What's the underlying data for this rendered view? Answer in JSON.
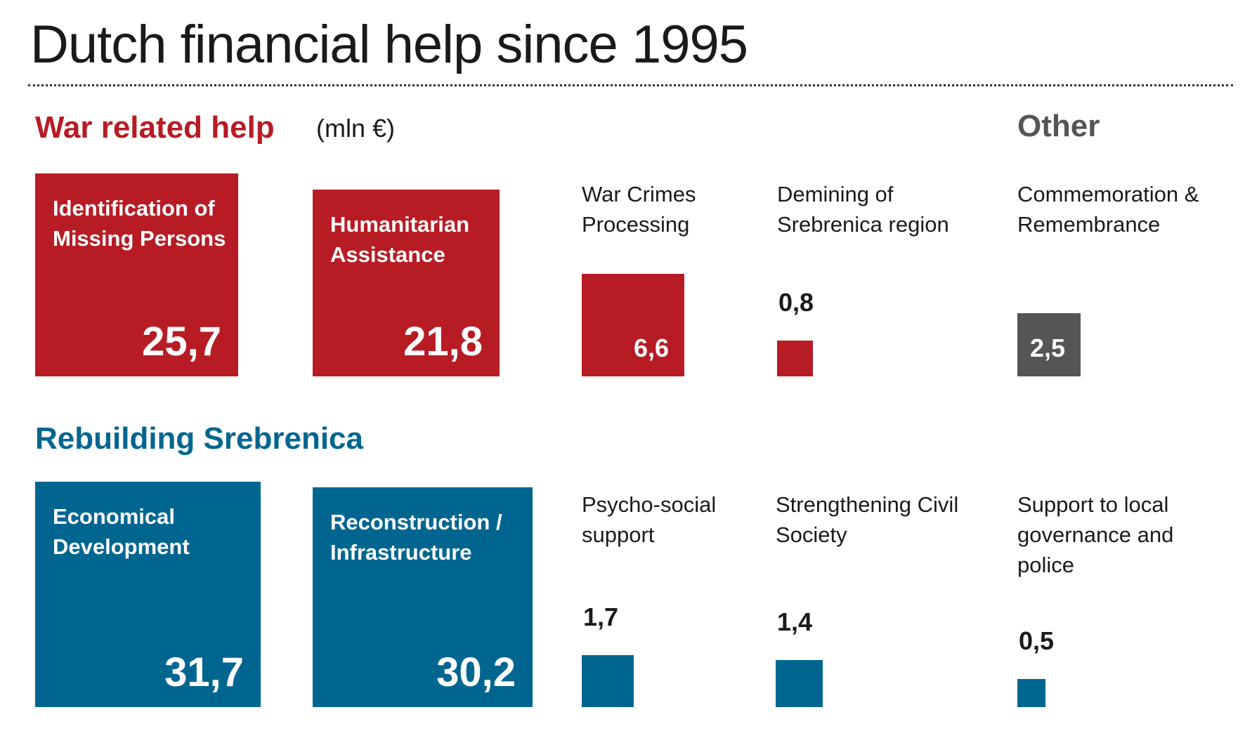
{
  "title": "Dutch financial help since 1995",
  "chart_data": {
    "type": "treemap",
    "unit": "(mln €)",
    "colors": {
      "war": "#b71c25",
      "rebuild": "#006690",
      "other": "#555555"
    },
    "groups": [
      {
        "name": "War related help",
        "color": "#b71c25",
        "items": [
          {
            "label": "Identification of Missing Persons",
            "value": 25.7,
            "display": "25,7"
          },
          {
            "label": "Humanitarian Assistance",
            "value": 21.8,
            "display": "21,8"
          },
          {
            "label": "War Crimes Processing",
            "value": 6.6,
            "display": "6,6"
          },
          {
            "label": "Demining of Srebrenica region",
            "value": 0.8,
            "display": "0,8"
          }
        ]
      },
      {
        "name": "Other",
        "color": "#555555",
        "items": [
          {
            "label": "Commemoration & Remembrance",
            "value": 2.5,
            "display": "2,5"
          }
        ]
      },
      {
        "name": "Rebuilding Srebrenica",
        "color": "#006690",
        "items": [
          {
            "label": "Economical Development",
            "value": 31.7,
            "display": "31,7"
          },
          {
            "label": "Reconstruction / Infrastructure",
            "value": 30.2,
            "display": "30,2"
          },
          {
            "label": "Psycho-social support",
            "value": 1.7,
            "display": "1,7"
          },
          {
            "label": "Strengthening Civil Society",
            "value": 1.4,
            "display": "1,4"
          },
          {
            "label": "Support to local governance and police",
            "value": 0.5,
            "display": "0,5"
          }
        ]
      }
    ]
  }
}
